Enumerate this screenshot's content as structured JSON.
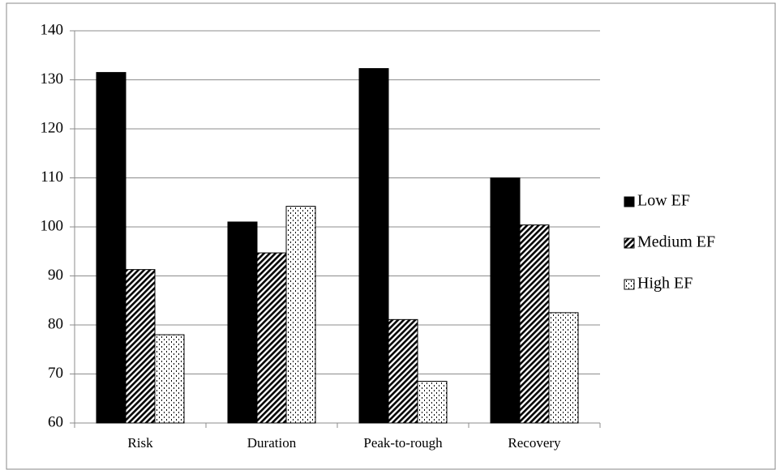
{
  "chart_data": {
    "type": "bar",
    "categories": [
      "Risk",
      "Duration",
      "Peak-to-rough",
      "Recovery"
    ],
    "series": [
      {
        "name": "Low EF",
        "color": "#000000",
        "pattern": "solid",
        "values": [
          131.5,
          101,
          132.3,
          110
        ]
      },
      {
        "name": "Medium EF",
        "color": "#000000",
        "pattern": "diagonal",
        "values": [
          91.3,
          94.7,
          81.1,
          100.4
        ]
      },
      {
        "name": "High EF",
        "color": "#000000",
        "pattern": "dots",
        "values": [
          78,
          104.2,
          68.5,
          82.5
        ]
      }
    ],
    "ylim": [
      60,
      140
    ],
    "yticks": [
      60,
      70,
      80,
      90,
      100,
      110,
      120,
      130,
      140
    ],
    "grid": true,
    "legend": "right"
  }
}
